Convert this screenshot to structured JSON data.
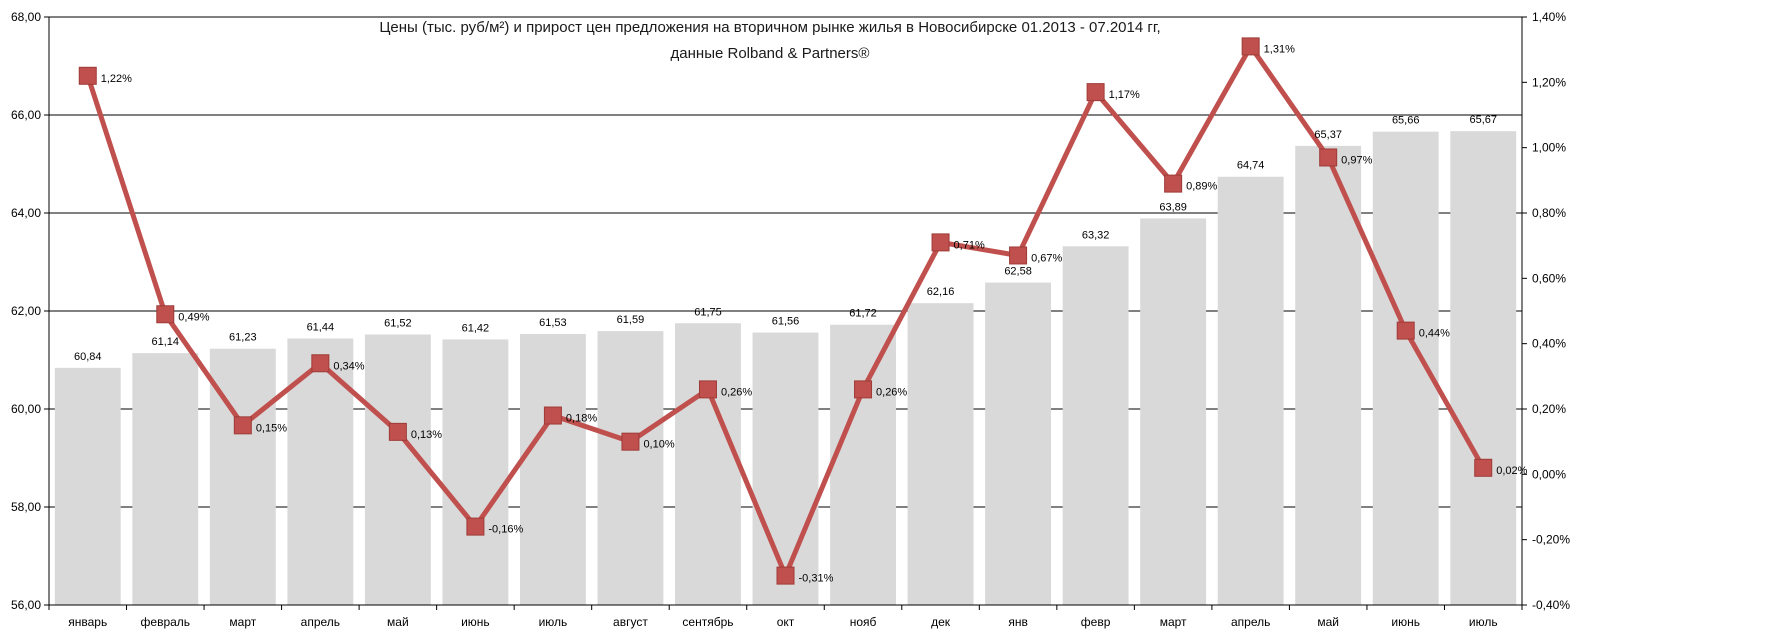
{
  "chart_data": {
    "type": "bar",
    "title": "Цены (тыс. руб/м²) и прирост цен предложения на вторичном рынке жилья в Новосибирске 01.2013 - 07.2014 гг,",
    "subtitle": "данные Rolband & Partners®",
    "categories": [
      "январь",
      "февраль",
      "март",
      "апрель",
      "май",
      "июнь",
      "июль",
      "август",
      "сентябрь",
      "окт",
      "нояб",
      "дек",
      "янв",
      "февр",
      "март",
      "апрель",
      "май",
      "июнь",
      "июль"
    ],
    "series": [
      {
        "type": "bar",
        "axis": "left",
        "color": "#d9d9d9",
        "values": [
          60.84,
          61.14,
          61.23,
          61.44,
          61.52,
          61.42,
          61.53,
          61.59,
          61.75,
          61.56,
          61.72,
          62.16,
          62.58,
          63.32,
          63.89,
          64.74,
          65.37,
          65.66,
          65.67
        ],
        "labels": [
          "60,84",
          "61,14",
          "61,23",
          "61,44",
          "61,52",
          "61,42",
          "61,53",
          "61,59",
          "61,75",
          "61,56",
          "61,72",
          "62,16",
          "62,58",
          "63,32",
          "63,89",
          "64,74",
          "65,37",
          "65,66",
          "65,67"
        ]
      },
      {
        "type": "line",
        "axis": "right",
        "color": "#c0504d",
        "values": [
          1.22,
          0.49,
          0.15,
          0.34,
          0.13,
          -0.16,
          0.18,
          0.1,
          0.26,
          -0.31,
          0.26,
          0.71,
          0.67,
          1.17,
          0.89,
          1.31,
          0.97,
          0.44,
          0.02
        ],
        "labels": [
          "1,22%",
          "0,49%",
          "0,15%",
          "0,34%",
          "0,13%",
          "-0,16%",
          "0,18%",
          "0,10%",
          "0,26%",
          "-0,31%",
          "0,26%",
          "0,71%",
          "0,67%",
          "1,17%",
          "0,89%",
          "1,31%",
          "0,97%",
          "0,44%",
          "0,02%"
        ]
      }
    ],
    "y_left": {
      "min": 56,
      "max": 68,
      "ticks": [
        "56,00",
        "58,00",
        "60,00",
        "62,00",
        "64,00",
        "66,00",
        "68,00"
      ]
    },
    "y_right": {
      "min": -0.4,
      "max": 1.4,
      "ticks": [
        "-0,40%",
        "-0,20%",
        "0,00%",
        "0,20%",
        "0,40%",
        "0,60%",
        "0,80%",
        "1,00%",
        "1,20%",
        "1,40%"
      ]
    },
    "grid": true,
    "legend": "none"
  }
}
